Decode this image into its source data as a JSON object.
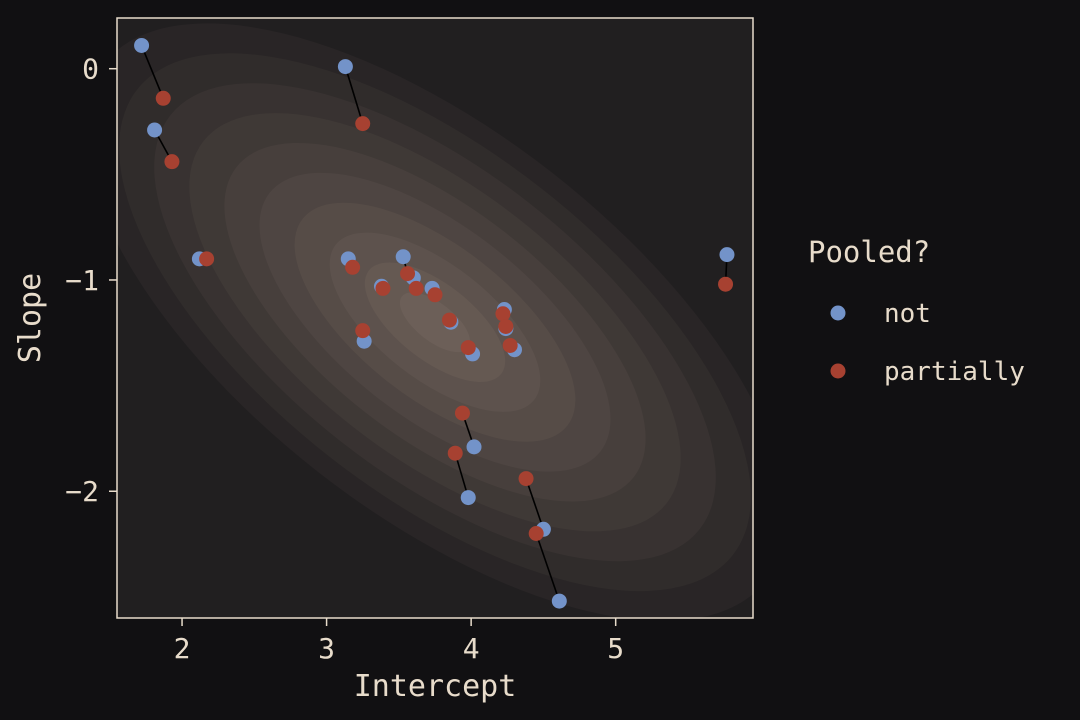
{
  "colors": {
    "background": "#111012",
    "panel": "#211f20",
    "panel_border": "#e8dccb",
    "text": "#e8dccb",
    "not": "#7393c9",
    "partially": "#a74131",
    "segment": "#000000"
  },
  "chart_data": {
    "type": "scatter",
    "xlabel": "Intercept",
    "ylabel": "Slope",
    "xlim": [
      1.55,
      5.95
    ],
    "ylim": [
      -2.6,
      0.24
    ],
    "xticks": [
      2,
      3,
      4,
      5
    ],
    "yticks": [
      0,
      -1,
      -2
    ],
    "ytick_labels": [
      "0",
      "−1",
      "−2"
    ],
    "grid": false,
    "background": "density contours (bivariate normal)",
    "legend": {
      "title": "Pooled?",
      "position": "right",
      "entries": [
        "not",
        "partially"
      ]
    },
    "density": {
      "center": [
        3.75,
        -1.2
      ],
      "levels": 10
    },
    "series": [
      {
        "name": "not",
        "points": [
          [
            1.72,
            0.11
          ],
          [
            1.81,
            -0.29
          ],
          [
            2.12,
            -0.9
          ],
          [
            3.13,
            0.01
          ],
          [
            3.15,
            -0.9
          ],
          [
            3.26,
            -1.29
          ],
          [
            3.38,
            -1.03
          ],
          [
            3.53,
            -0.89
          ],
          [
            3.6,
            -0.99
          ],
          [
            3.73,
            -1.04
          ],
          [
            3.86,
            -1.2
          ],
          [
            4.01,
            -1.35
          ],
          [
            4.02,
            -1.79
          ],
          [
            3.98,
            -2.03
          ],
          [
            4.23,
            -1.14
          ],
          [
            4.24,
            -1.23
          ],
          [
            4.3,
            -1.33
          ],
          [
            4.5,
            -2.18
          ],
          [
            4.61,
            -2.52
          ],
          [
            5.77,
            -0.88
          ]
        ]
      },
      {
        "name": "partially",
        "points": [
          [
            1.87,
            -0.14
          ],
          [
            1.93,
            -0.44
          ],
          [
            2.17,
            -0.9
          ],
          [
            3.25,
            -0.26
          ],
          [
            3.18,
            -0.94
          ],
          [
            3.25,
            -1.24
          ],
          [
            3.39,
            -1.04
          ],
          [
            3.56,
            -0.97
          ],
          [
            3.62,
            -1.04
          ],
          [
            3.75,
            -1.07
          ],
          [
            3.85,
            -1.19
          ],
          [
            3.98,
            -1.32
          ],
          [
            3.94,
            -1.63
          ],
          [
            3.89,
            -1.82
          ],
          [
            4.22,
            -1.16
          ],
          [
            4.24,
            -1.22
          ],
          [
            4.27,
            -1.31
          ],
          [
            4.38,
            -1.94
          ],
          [
            4.45,
            -2.2
          ],
          [
            5.76,
            -1.02
          ]
        ]
      }
    ]
  }
}
